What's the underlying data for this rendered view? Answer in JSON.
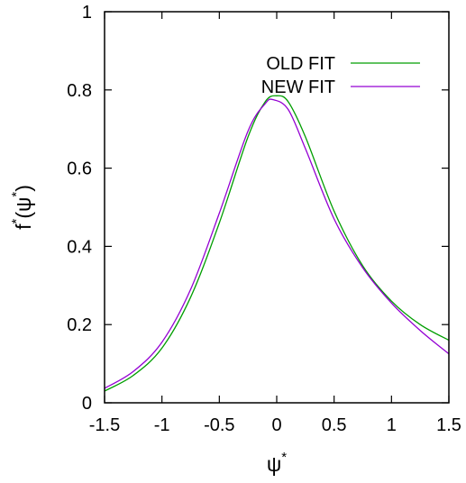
{
  "chart_data": {
    "type": "line",
    "title": "",
    "xlabel": "ψ*",
    "ylabel": "f*(ψ*)",
    "axis_text": {
      "x_base": "ψ",
      "y_func": "f",
      "y_arg": "ψ",
      "open_paren": "(",
      "close_paren": ")",
      "star": "*"
    },
    "xlim": [
      -1.5,
      1.5
    ],
    "ylim": [
      0,
      1
    ],
    "xticks": [
      -1.5,
      -1,
      -0.5,
      0,
      0.5,
      1,
      1.5
    ],
    "xtick_labels": [
      "-1.5",
      "-1",
      "-0.5",
      "0",
      "0.5",
      "1",
      "1.5"
    ],
    "yticks": [
      0,
      0.2,
      0.4,
      0.6,
      0.8,
      1
    ],
    "ytick_labels": [
      "0",
      "0.2",
      "0.4",
      "0.6",
      "0.8",
      "1"
    ],
    "grid": false,
    "legend_position": "top-right",
    "series": [
      {
        "name": "OLD FIT",
        "color": "#009e00",
        "x": [
          -1.5,
          -1.25,
          -1.0,
          -0.75,
          -0.5,
          -0.25,
          -0.1,
          0.0,
          0.1,
          0.25,
          0.5,
          0.75,
          1.0,
          1.25,
          1.5
        ],
        "y": [
          0.03,
          0.07,
          0.14,
          0.27,
          0.46,
          0.68,
          0.77,
          0.785,
          0.77,
          0.68,
          0.49,
          0.35,
          0.26,
          0.2,
          0.16
        ]
      },
      {
        "name": "NEW FIT",
        "color": "#9400d3",
        "x": [
          -1.5,
          -1.25,
          -1.0,
          -0.75,
          -0.5,
          -0.25,
          -0.1,
          -0.03,
          0.1,
          0.25,
          0.5,
          0.75,
          1.0,
          1.25,
          1.5
        ],
        "y": [
          0.037,
          0.08,
          0.155,
          0.29,
          0.485,
          0.695,
          0.765,
          0.775,
          0.75,
          0.65,
          0.47,
          0.345,
          0.255,
          0.185,
          0.125
        ]
      }
    ]
  }
}
